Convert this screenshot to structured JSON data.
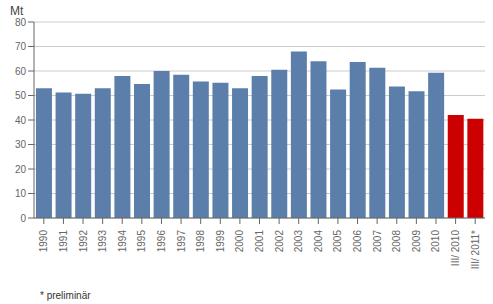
{
  "chart_data": {
    "type": "bar",
    "ylabel": "Mt",
    "annotations": [
      "* preliminär"
    ],
    "categories": [
      "1990",
      "1991",
      "1992",
      "1993",
      "1994",
      "1995",
      "1996",
      "1997",
      "1998",
      "1999",
      "2000",
      "2001",
      "2002",
      "2003",
      "2004",
      "2005",
      "2006",
      "2007",
      "2008",
      "2009",
      "2010",
      "III/ 2010",
      "III/ 2011*"
    ],
    "values": [
      53.0,
      51.2,
      50.7,
      53.0,
      58.0,
      54.7,
      60.0,
      58.5,
      55.7,
      55.2,
      53.0,
      58.0,
      60.5,
      68.0,
      64.0,
      52.5,
      63.7,
      61.3,
      53.7,
      51.7,
      59.3,
      42.0,
      40.5
    ],
    "colors": [
      "#5b7faa",
      "#5b7faa",
      "#5b7faa",
      "#5b7faa",
      "#5b7faa",
      "#5b7faa",
      "#5b7faa",
      "#5b7faa",
      "#5b7faa",
      "#5b7faa",
      "#5b7faa",
      "#5b7faa",
      "#5b7faa",
      "#5b7faa",
      "#5b7faa",
      "#5b7faa",
      "#5b7faa",
      "#5b7faa",
      "#5b7faa",
      "#5b7faa",
      "#5b7faa",
      "#cc0000",
      "#cc0000"
    ],
    "ylim": [
      0,
      80
    ],
    "yticks": [
      0,
      10,
      20,
      30,
      40,
      50,
      60,
      70,
      80
    ],
    "grid": true
  }
}
